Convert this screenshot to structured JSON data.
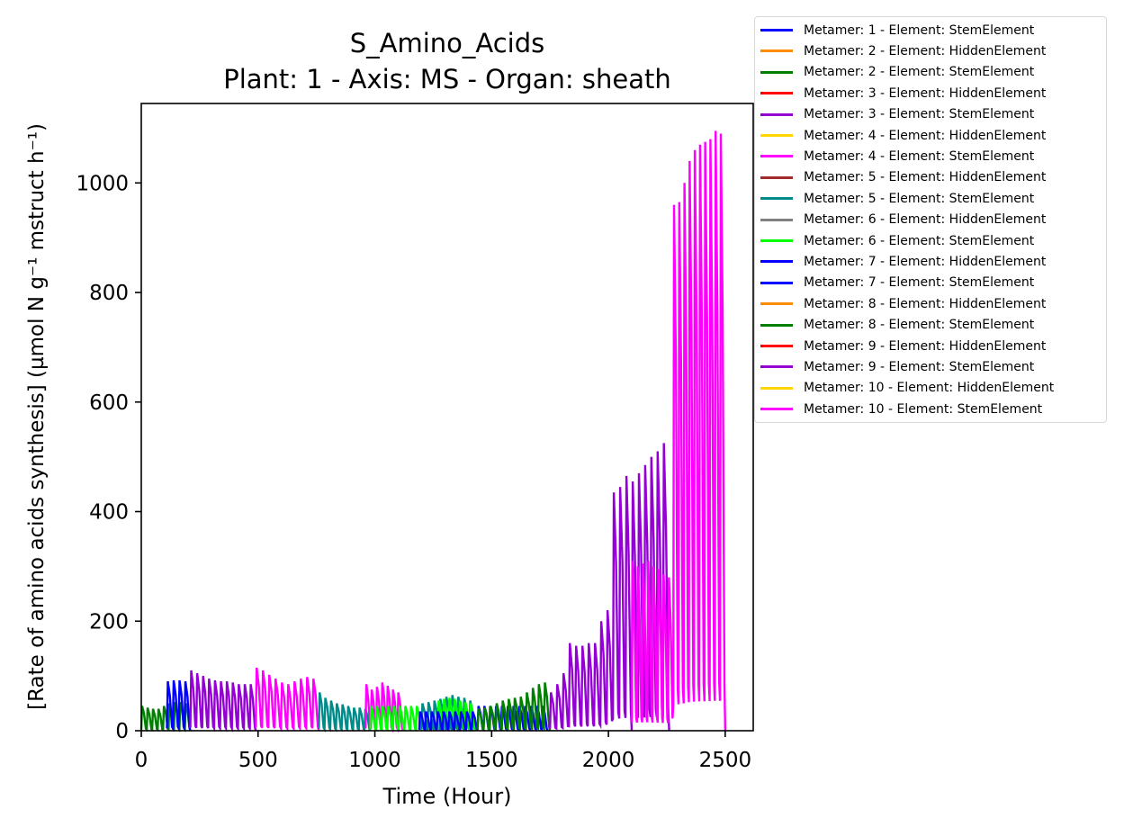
{
  "chart_data": {
    "type": "line",
    "title": "S_Amino_Acids",
    "subtitle": "Plant: 1 - Axis: MS - Organ: sheath",
    "xlabel": "Time (Hour)",
    "ylabel": "[Rate of amino acids synthesis] (µmol N g⁻¹ mstruct h⁻¹)",
    "xlim": [
      0,
      2620
    ],
    "ylim": [
      0,
      1145
    ],
    "xticks": [
      0,
      500,
      1000,
      1500,
      2000,
      2500
    ],
    "yticks": [
      0,
      200,
      400,
      600,
      800,
      1000
    ],
    "grid": false,
    "legend_position": "outside-top-right",
    "series": [
      {
        "name": "Metamer: 1 - Element: StemElement",
        "color": "#0000ff",
        "x": [
          0,
          2500
        ],
        "values": [
          0,
          0
        ]
      },
      {
        "name": "Metamer: 2 - Element: HiddenElement",
        "color": "#ff8c00",
        "x": [
          0,
          2500
        ],
        "values": [
          0,
          0
        ]
      },
      {
        "name": "Metamer: 2 - Element: StemElement",
        "color": "#008000",
        "x": [
          0,
          2500
        ],
        "values": [
          0,
          0
        ]
      },
      {
        "name": "Metamer: 3 - Element: HiddenElement",
        "color": "#ff0000",
        "x": [
          0,
          2500
        ],
        "values": [
          0,
          0
        ]
      },
      {
        "name": "Metamer: 3 - Element: StemElement",
        "color": "#9400d3",
        "x": [
          0,
          2500
        ],
        "values": [
          0,
          0
        ]
      },
      {
        "name": "Metamer: 4 - Element: HiddenElement",
        "color": "#ffd700",
        "x": [
          0,
          2500
        ],
        "values": [
          0,
          0
        ]
      },
      {
        "name": "Metamer: 4 - Element: StemElement",
        "color": "#ff00ff",
        "x": [
          0,
          2500
        ],
        "values": [
          0,
          0
        ]
      },
      {
        "name": "Metamer: 5 - Element: HiddenElement",
        "color": "#a52a2a",
        "x": [
          0,
          2500
        ],
        "values": [
          0,
          0
        ]
      },
      {
        "name": "Metamer: 5 - Element: StemElement",
        "color": "#008b8b",
        "x": [
          0,
          2500
        ],
        "values": [
          0,
          0
        ]
      },
      {
        "name": "Metamer: 6 - Element: HiddenElement",
        "color": "#808080",
        "x": [
          0,
          2500
        ],
        "values": [
          0,
          0
        ]
      },
      {
        "name": "Metamer: 6 - Element: StemElement",
        "color": "#00ff00",
        "x": [
          0,
          2500
        ],
        "values": [
          0,
          0
        ]
      },
      {
        "name": "Metamer: 7 - Element: HiddenElement",
        "color": "#0000ff",
        "x": [
          0,
          2500
        ],
        "values": [
          0,
          0
        ]
      },
      {
        "name": "Metamer: 7 - Element: StemElement",
        "color": "#0000ff",
        "x": [
          0,
          2500
        ],
        "values": [
          0,
          0
        ]
      },
      {
        "name": "Metamer: 8 - Element: HiddenElement",
        "color": "#ff8c00",
        "x": [
          0,
          2500
        ],
        "values": [
          0,
          0
        ]
      },
      {
        "name": "Metamer: 8 - Element: StemElement",
        "color": "#008000",
        "x": [
          0,
          2500
        ],
        "values": [
          0,
          0
        ]
      },
      {
        "name": "Metamer: 9 - Element: HiddenElement",
        "color": "#ff0000",
        "x": [
          0,
          2500
        ],
        "values": [
          0,
          0
        ]
      },
      {
        "name": "Metamer: 9 - Element: StemElement",
        "color": "#9400d3",
        "x": [
          0,
          2500
        ],
        "values": [
          0,
          0
        ]
      },
      {
        "name": "Metamer: 10 - Element: HiddenElement",
        "color": "#ffd700",
        "x": [
          0,
          2500
        ],
        "values": [
          0,
          0
        ]
      },
      {
        "name": "Metamer: 10 - Element: StemElement",
        "color": "#ff00ff",
        "x": [
          0,
          2500
        ],
        "values": [
          0,
          0
        ]
      }
    ],
    "visible_segments": [
      {
        "color": "#008000",
        "x_range": [
          0,
          210
        ],
        "peaks": [
          45,
          42,
          40,
          40,
          45,
          50,
          52,
          52,
          50
        ]
      },
      {
        "color": "#0000ff",
        "x_range": [
          110,
          210
        ],
        "peaks": [
          90,
          92,
          92,
          90
        ]
      },
      {
        "color": "#9400d3",
        "x_range": [
          210,
          490
        ],
        "peaks": [
          110,
          105,
          100,
          95,
          92,
          90,
          90,
          88,
          85,
          85,
          85
        ]
      },
      {
        "color": "#ff00ff",
        "x_range": [
          490,
          760
        ],
        "peaks": [
          115,
          110,
          102,
          95,
          88,
          85,
          90,
          95,
          98,
          95
        ]
      },
      {
        "color": "#008b8b",
        "x_range": [
          760,
          980
        ],
        "peaks": [
          70,
          60,
          55,
          50,
          48,
          45,
          42,
          42,
          40
        ]
      },
      {
        "color": "#ff00ff",
        "x_range": [
          960,
          1120
        ],
        "peaks": [
          85,
          75,
          80,
          88,
          82,
          75,
          70
        ]
      },
      {
        "color": "#00ff00",
        "x_range": [
          980,
          1200
        ],
        "peaks": [
          45,
          45,
          45,
          45,
          45,
          45,
          45,
          45,
          45
        ]
      },
      {
        "color": "#008b8b",
        "x_range": [
          1200,
          1430
        ],
        "peaks": [
          50,
          52,
          55,
          58,
          62,
          65,
          62,
          60,
          55
        ]
      },
      {
        "color": "#00ff00",
        "x_range": [
          1270,
          1430
        ],
        "peaks": [
          55,
          58,
          60,
          58,
          55,
          52,
          50
        ]
      },
      {
        "color": "#0000ff",
        "x_range": [
          1190,
          1440
        ],
        "peaks": [
          35,
          35,
          35,
          35,
          35,
          35,
          35,
          35,
          35,
          35
        ]
      },
      {
        "color": "#0000ff",
        "x_range": [
          1440,
          1740
        ],
        "peaks": [
          45,
          45,
          45,
          45,
          45,
          45,
          45,
          45,
          45,
          45,
          45,
          45
        ]
      },
      {
        "color": "#008000",
        "x_range": [
          1440,
          1750
        ],
        "peaks": [
          40,
          42,
          45,
          50,
          55,
          58,
          60,
          62,
          70,
          78,
          85,
          88
        ]
      },
      {
        "color": "#9400d3",
        "x_range": [
          1750,
          2100
        ],
        "peaks": [
          70,
          85,
          105,
          160,
          155,
          155,
          160,
          160,
          200,
          220,
          435,
          445,
          465
        ]
      },
      {
        "color": "#9400d3",
        "x_range": [
          2100,
          2260
        ],
        "peaks": [
          455,
          470,
          485,
          500,
          510,
          525
        ]
      },
      {
        "color": "#ff00ff",
        "x_range": [
          2100,
          2500
        ],
        "peaks": [
          310,
          300,
          305,
          310,
          300,
          295,
          285,
          280,
          960,
          965,
          1000,
          1040,
          1060,
          1070,
          1075,
          1080,
          1095,
          1090
        ]
      }
    ]
  }
}
